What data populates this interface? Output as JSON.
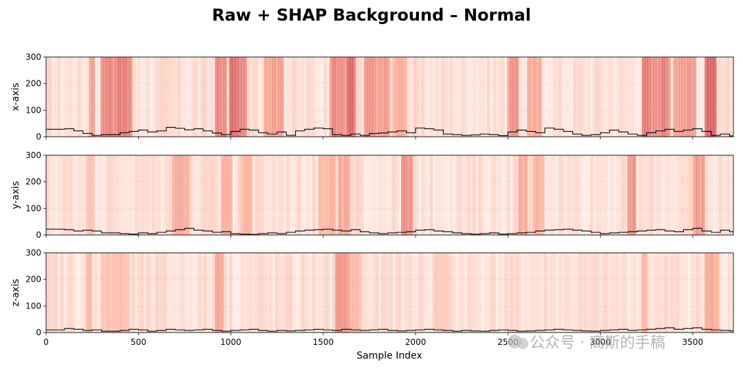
{
  "chart_data": {
    "type": "line",
    "title": "Raw + SHAP Background – Normal",
    "xlabel": "Sample Index",
    "xlim": [
      0,
      3720
    ],
    "x_ticks": [
      "0",
      "500",
      "1000",
      "1500",
      "2000",
      "2500",
      "3000",
      "3500"
    ],
    "y_ticks": [
      "0",
      "100",
      "200",
      "300"
    ],
    "background": "SHAP importance heatmap (Reds colormap) shaded behind each raw signal",
    "panels": [
      {
        "ylabel": "x-axis",
        "ylim": [
          0,
          300
        ],
        "series": [
          {
            "name": "x-axis raw",
            "color": "#000000",
            "x": [
              0,
              100,
              150,
              200,
              250,
              300,
              400,
              450,
              500,
              550,
              600,
              650,
              700,
              750,
              800,
              850,
              900,
              950,
              1000,
              1050,
              1100,
              1150,
              1200,
              1250,
              1300,
              1350,
              1400,
              1450,
              1500,
              1550,
              1600,
              1650,
              1700,
              1750,
              1800,
              1850,
              1900,
              1950,
              2000,
              2050,
              2100,
              2150,
              2200,
              2250,
              2300,
              2350,
              2400,
              2450,
              2500,
              2550,
              2600,
              2650,
              2700,
              2750,
              2800,
              2850,
              2900,
              2950,
              3000,
              3050,
              3100,
              3150,
              3200,
              3250,
              3300,
              3350,
              3400,
              3450,
              3500,
              3550,
              3600,
              3650,
              3700
            ],
            "values": [
              28,
              30,
              22,
              12,
              5,
              8,
              15,
              20,
              25,
              18,
              22,
              35,
              32,
              26,
              30,
              22,
              14,
              8,
              20,
              28,
              25,
              15,
              10,
              18,
              5,
              22,
              28,
              33,
              30,
              8,
              5,
              10,
              5,
              12,
              14,
              18,
              22,
              15,
              33,
              30,
              25,
              10,
              8,
              5,
              7,
              10,
              8,
              4,
              18,
              25,
              20,
              15,
              33,
              28,
              20,
              10,
              5,
              8,
              15,
              25,
              18,
              10,
              5,
              15,
              22,
              28,
              20,
              25,
              30,
              20,
              5,
              10,
              3
            ]
          }
        ]
      },
      {
        "ylabel": "y-axis",
        "ylim": [
          0,
          300
        ],
        "series": [
          {
            "name": "y-axis raw",
            "color": "#000000",
            "x": [
              0,
              100,
              150,
              200,
              250,
              300,
              400,
              450,
              500,
              550,
              600,
              650,
              700,
              750,
              800,
              850,
              900,
              950,
              1000,
              1050,
              1100,
              1150,
              1200,
              1250,
              1300,
              1350,
              1400,
              1450,
              1500,
              1550,
              1600,
              1650,
              1700,
              1750,
              1800,
              1850,
              1900,
              1950,
              2000,
              2050,
              2100,
              2150,
              2200,
              2250,
              2300,
              2350,
              2400,
              2450,
              2500,
              2550,
              2600,
              2650,
              2700,
              2750,
              2800,
              2850,
              2900,
              2950,
              3000,
              3050,
              3100,
              3150,
              3200,
              3250,
              3300,
              3350,
              3400,
              3450,
              3500,
              3550,
              3600,
              3650,
              3700
            ],
            "values": [
              22,
              20,
              15,
              18,
              15,
              8,
              5,
              3,
              8,
              5,
              10,
              15,
              20,
              25,
              18,
              15,
              10,
              12,
              5,
              3,
              2,
              5,
              8,
              5,
              10,
              15,
              18,
              20,
              22,
              18,
              15,
              20,
              12,
              8,
              5,
              8,
              10,
              12,
              18,
              20,
              15,
              12,
              8,
              5,
              3,
              5,
              8,
              3,
              5,
              8,
              10,
              15,
              18,
              20,
              22,
              18,
              15,
              10,
              5,
              8,
              10,
              12,
              15,
              18,
              20,
              15,
              12,
              20,
              25,
              15,
              10,
              18,
              12
            ]
          }
        ]
      },
      {
        "ylabel": "z-axis",
        "ylim": [
          0,
          300
        ],
        "series": [
          {
            "name": "z-axis raw",
            "color": "#000000",
            "x": [
              0,
              100,
              150,
              200,
              250,
              300,
              400,
              450,
              500,
              550,
              600,
              650,
              700,
              750,
              800,
              850,
              900,
              950,
              1000,
              1050,
              1100,
              1150,
              1200,
              1250,
              1300,
              1350,
              1400,
              1450,
              1500,
              1550,
              1600,
              1650,
              1700,
              1750,
              1800,
              1850,
              1900,
              1950,
              2000,
              2050,
              2100,
              2150,
              2200,
              2250,
              2300,
              2350,
              2400,
              2450,
              2500,
              2550,
              2600,
              2650,
              2700,
              2750,
              2800,
              2850,
              2900,
              2950,
              3000,
              3050,
              3100,
              3150,
              3200,
              3250,
              3300,
              3350,
              3400,
              3450,
              3500,
              3550,
              3600,
              3650,
              3700
            ],
            "values": [
              10,
              15,
              12,
              8,
              10,
              5,
              8,
              12,
              10,
              5,
              8,
              12,
              10,
              8,
              10,
              12,
              8,
              5,
              8,
              10,
              12,
              8,
              5,
              8,
              6,
              8,
              10,
              12,
              10,
              8,
              12,
              10,
              8,
              10,
              12,
              8,
              6,
              8,
              10,
              12,
              10,
              8,
              5,
              8,
              6,
              5,
              8,
              10,
              8,
              5,
              6,
              8,
              10,
              12,
              10,
              8,
              6,
              5,
              8,
              10,
              12,
              8,
              10,
              12,
              15,
              18,
              12,
              15,
              18,
              12,
              10,
              8,
              6
            ]
          }
        ]
      }
    ]
  },
  "colors": {
    "line": "#000000",
    "shap_low": "#fff5f0",
    "shap_high": "#cb181d"
  },
  "watermark": "公众号 · 高斯的手稿"
}
